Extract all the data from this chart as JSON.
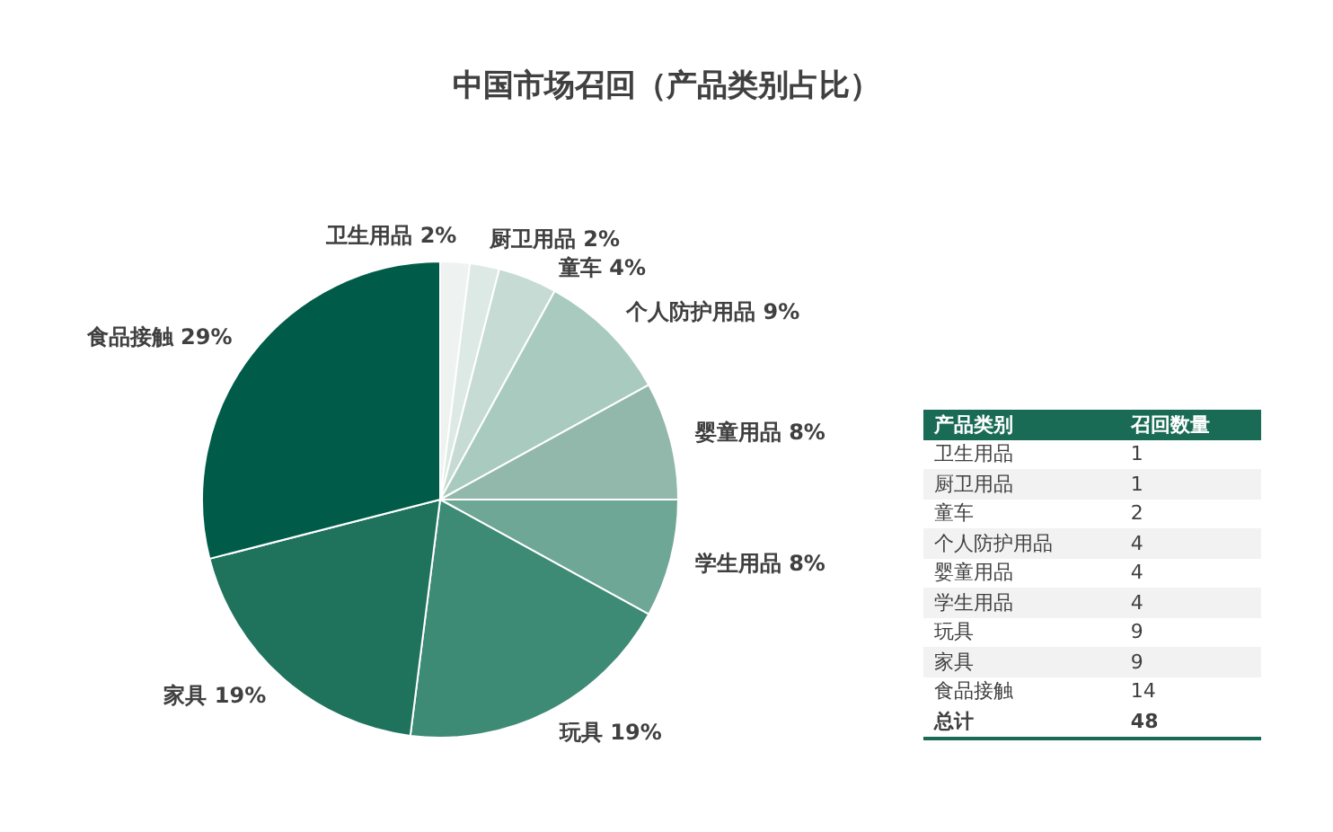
{
  "chart_data": [
    {
      "type": "pie",
      "title": "中国市场召回（产品类别占比）",
      "categories": [
        "卫生用品",
        "厨卫用品",
        "童车",
        "个人防护用品",
        "婴童用品",
        "学生用品",
        "玩具",
        "家具",
        "食品接触"
      ],
      "values": [
        2,
        2,
        4,
        9,
        8,
        8,
        19,
        19,
        29
      ],
      "colors": [
        "#eef3f1",
        "#dde9e5",
        "#c5dbd4",
        "#a9cbbf",
        "#92b8ab",
        "#6fa797",
        "#3d8a75",
        "#1f725c",
        "#005c48"
      ],
      "value_labels": [
        "2%",
        "2%",
        "4%",
        "9%",
        "8%",
        "8%",
        "19%",
        "19%",
        "29%"
      ]
    },
    {
      "type": "other",
      "categories": [
        "卫生用品",
        "厨卫用品",
        "童车",
        "个人防护用品",
        "婴童用品",
        "学生用品",
        "玩具",
        "家具",
        "食品接触"
      ],
      "values": [
        1,
        1,
        2,
        4,
        4,
        4,
        9,
        9,
        14
      ],
      "data_labels": true,
      "totals": [
        "48"
      ],
      "annotations": [
        "产品类别",
        "召回数量",
        "总计"
      ]
    }
  ]
}
